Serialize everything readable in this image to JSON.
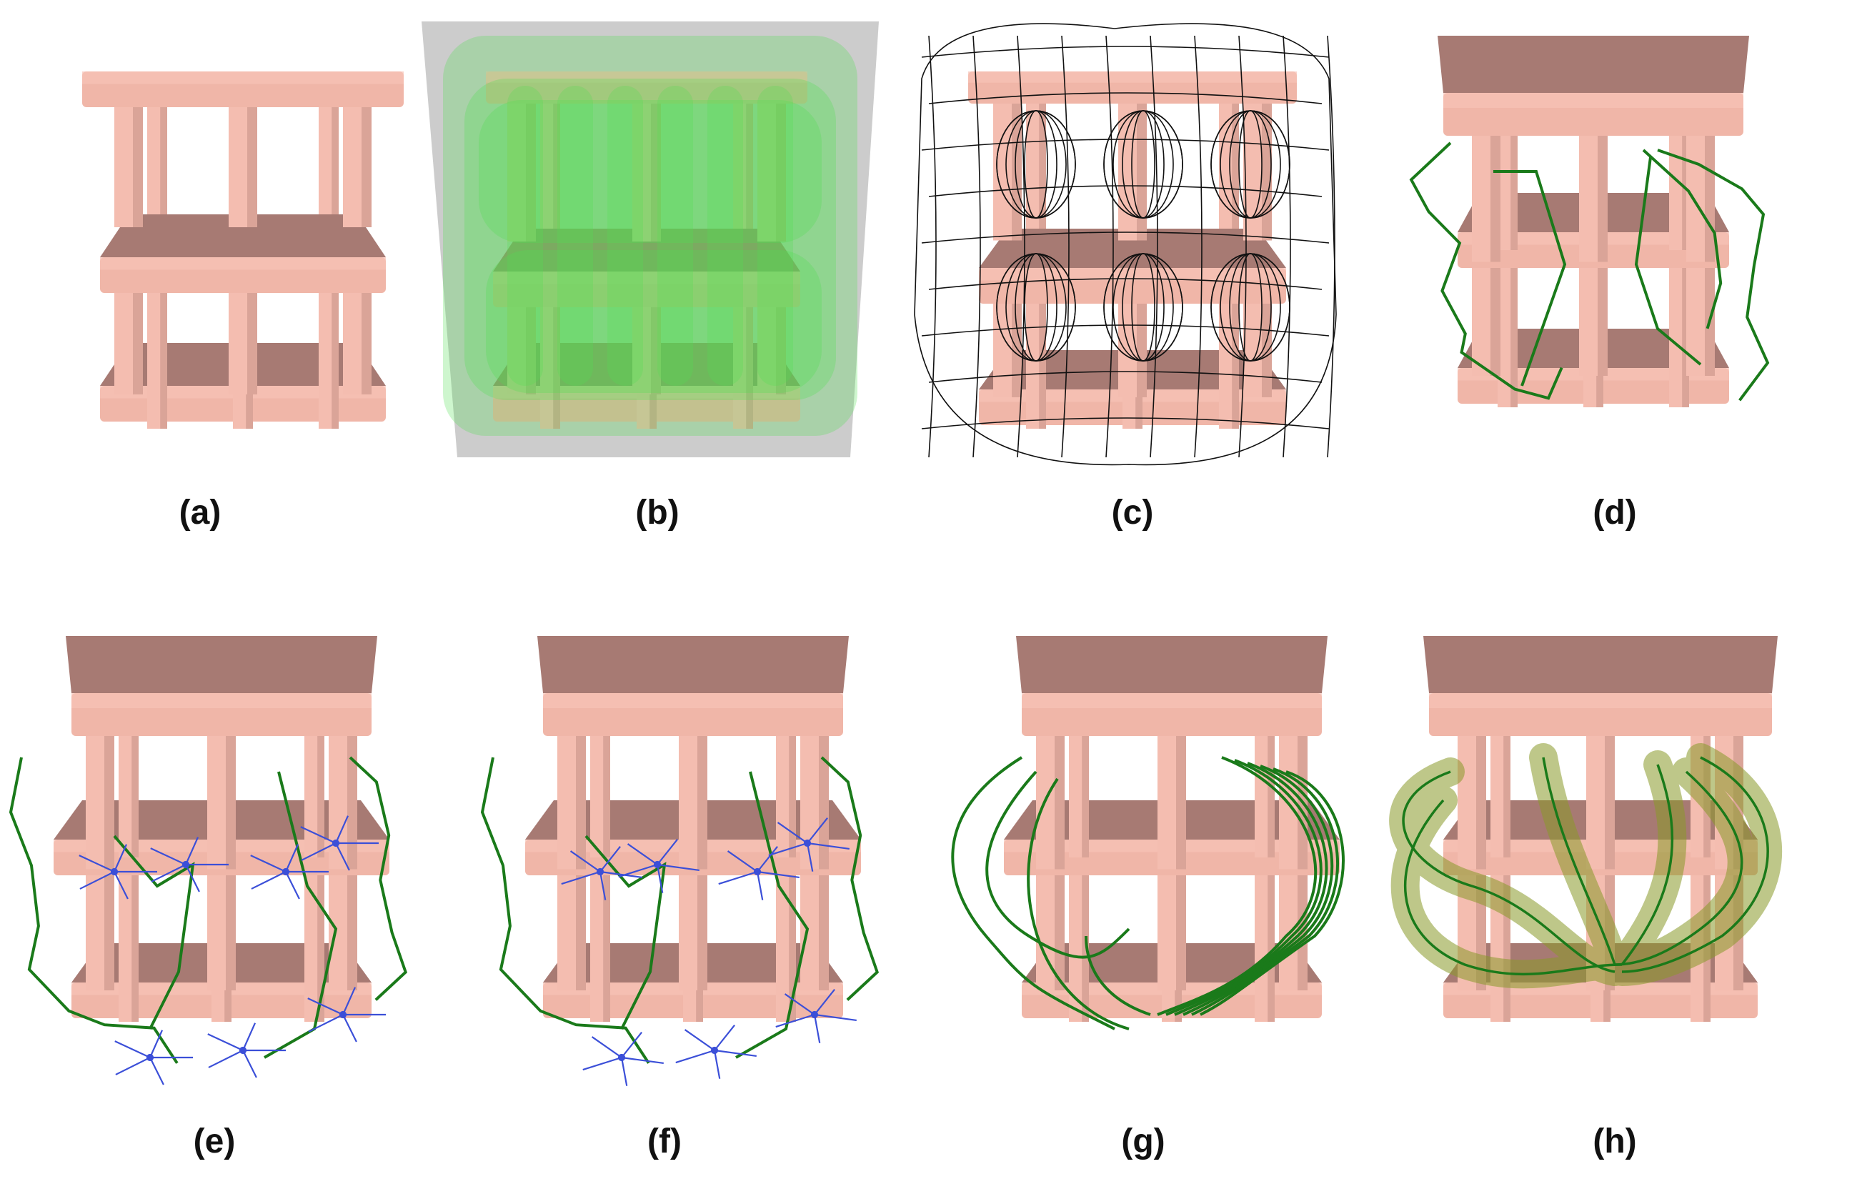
{
  "colors": {
    "slab_top": "#f7c3b6",
    "slab_front": "#f0b6a8",
    "slab_shade": "#a77a73",
    "pillar": "#f4bdb0",
    "pillar_dark": "#c58f85",
    "green_path": "#1a7a1a",
    "blue_graph": "#3b4fd8",
    "wire": "#111111",
    "hull_green": "#4fe04f",
    "hull_grey": "#9a9a9a",
    "tube": "#8a9a2a"
  },
  "panels": [
    {
      "id": "a",
      "label": "(a)",
      "variant": "plain"
    },
    {
      "id": "b",
      "label": "(b)",
      "variant": "hull"
    },
    {
      "id": "c",
      "label": "(c)",
      "variant": "wireframe"
    },
    {
      "id": "d",
      "label": "(d)",
      "variant": "paths"
    },
    {
      "id": "e",
      "label": "(e)",
      "variant": "paths-graph"
    },
    {
      "id": "f",
      "label": "(f)",
      "variant": "paths-graph"
    },
    {
      "id": "g",
      "label": "(g)",
      "variant": "smooth-paths"
    },
    {
      "id": "h",
      "label": "(h)",
      "variant": "tubes"
    }
  ]
}
